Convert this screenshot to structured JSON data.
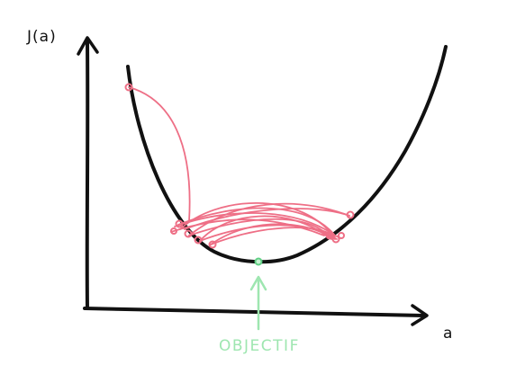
{
  "diagram": {
    "y_axis_label": "J(a)",
    "x_axis_label": "a",
    "target_label": "OBJECTIF",
    "colors": {
      "ink": "#111111",
      "steps": "#ee6f86",
      "target": "#9ee6b0"
    }
  }
}
